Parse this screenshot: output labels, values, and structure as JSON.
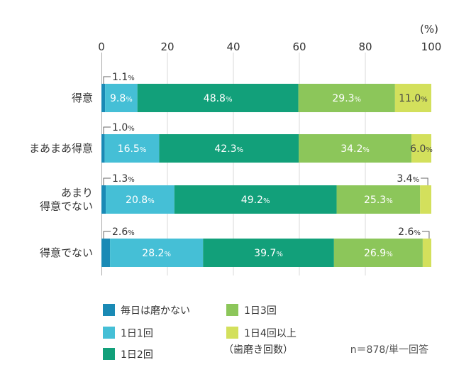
{
  "chart_data": {
    "type": "bar",
    "orientation": "horizontal",
    "stacked": true,
    "unit": "(%)",
    "xlim": [
      0,
      100
    ],
    "x_ticks": [
      "0",
      "20",
      "40",
      "60",
      "80",
      "100"
    ],
    "grid": "vertical",
    "categories": [
      [
        "得意"
      ],
      [
        "まあまあ得意"
      ],
      [
        "あまり",
        "得意でない"
      ],
      [
        "得意でない"
      ]
    ],
    "series": [
      {
        "name": "毎日は磨かない",
        "color": "#1a8ab5",
        "values": [
          1.1,
          1.0,
          1.3,
          2.6
        ]
      },
      {
        "name": "1日1回",
        "color": "#45bfd6",
        "values": [
          9.8,
          16.5,
          20.8,
          28.2
        ]
      },
      {
        "name": "1日2回",
        "color": "#12a07a",
        "values": [
          48.8,
          42.3,
          49.2,
          39.7
        ]
      },
      {
        "name": "1日3回",
        "color": "#8cc65a",
        "values": [
          29.3,
          34.2,
          25.3,
          26.9
        ]
      },
      {
        "name": "1日4回以上",
        "color": "#d3e05c",
        "values": [
          11.0,
          6.0,
          3.4,
          2.6
        ]
      }
    ],
    "legend_note": "（歯磨き回数）",
    "footnote": "n＝878/単一回答",
    "legend_position": "bottom"
  }
}
